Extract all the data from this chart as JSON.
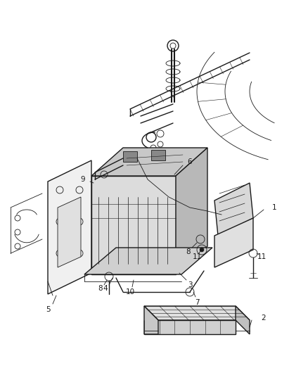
{
  "bg_color": "#ffffff",
  "line_color": "#1a1a1a",
  "figsize": [
    4.38,
    5.33
  ],
  "dpi": 100,
  "img_extent": [
    0,
    438,
    0,
    533
  ]
}
